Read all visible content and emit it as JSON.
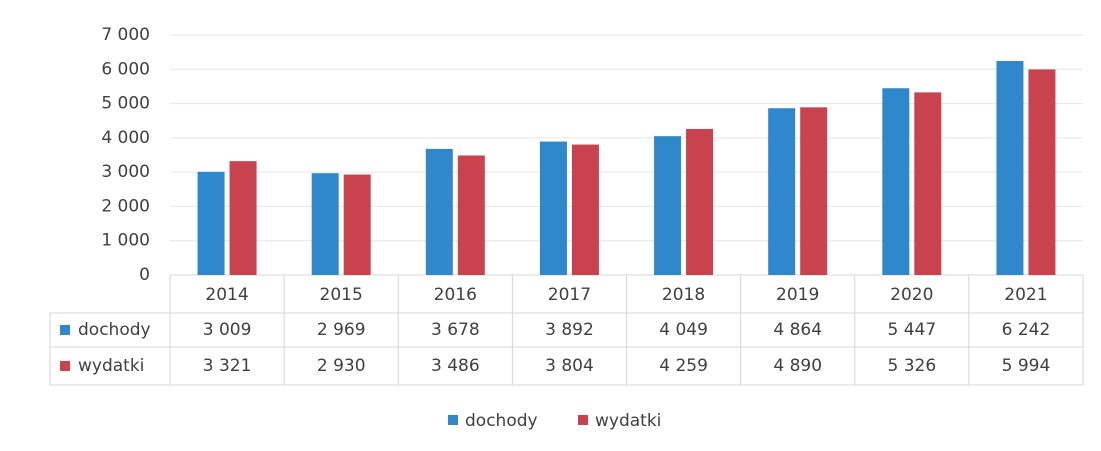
{
  "chart_data": {
    "type": "bar",
    "categories": [
      "2014",
      "2015",
      "2016",
      "2017",
      "2018",
      "2019",
      "2020",
      "2021"
    ],
    "series": [
      {
        "name": "dochody",
        "color": "#2f88cc",
        "values": [
          3009,
          2969,
          3678,
          3892,
          4049,
          4864,
          5447,
          6242
        ],
        "value_labels": [
          "3 009",
          "2 969",
          "3 678",
          "3 892",
          "4 049",
          "4 864",
          "5 447",
          "6 242"
        ]
      },
      {
        "name": "wydatki",
        "color": "#c9434f",
        "values": [
          3321,
          2930,
          3486,
          3804,
          4259,
          4890,
          5326,
          5994
        ],
        "value_labels": [
          "3 321",
          "2 930",
          "3 486",
          "3 804",
          "4 259",
          "4 890",
          "5 326",
          "5 994"
        ]
      }
    ],
    "ylim": [
      0,
      7000
    ],
    "yticks": [
      0,
      {
        "value": 1000,
        "label": "1 000"
      },
      {
        "value": 2000,
        "label": "2 000"
      },
      {
        "value": 3000,
        "label": "3 000"
      },
      {
        "value": 4000,
        "label": "4 000"
      },
      {
        "value": 5000,
        "label": "5 000"
      },
      {
        "value": 6000,
        "label": "6 000"
      },
      {
        "value": 7000,
        "label": "7 000"
      }
    ],
    "grid": true,
    "legend": "bottom"
  }
}
